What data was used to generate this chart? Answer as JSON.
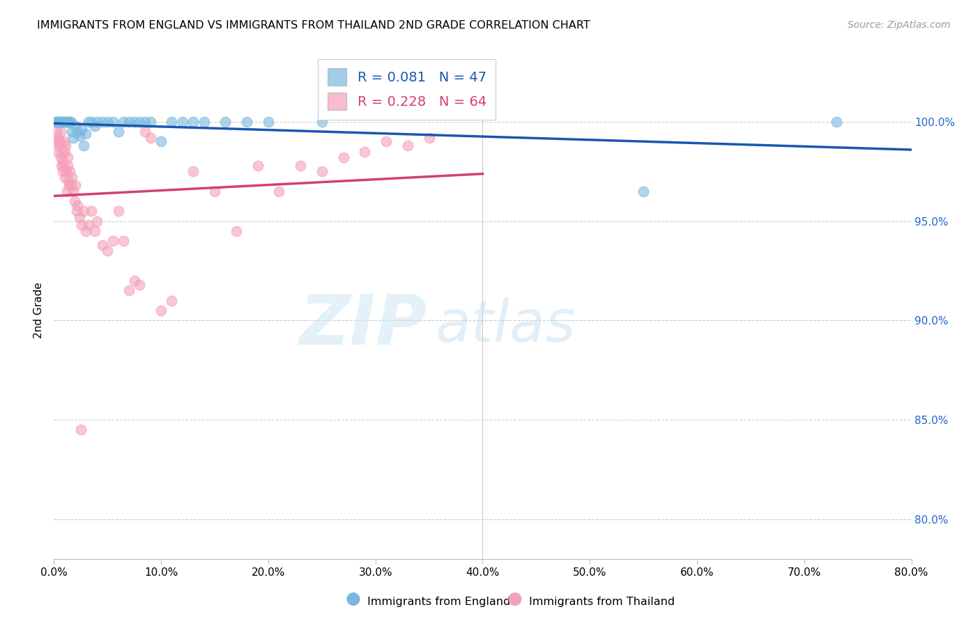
{
  "title": "IMMIGRANTS FROM ENGLAND VS IMMIGRANTS FROM THAILAND 2ND GRADE CORRELATION CHART",
  "source": "Source: ZipAtlas.com",
  "ylabel": "2nd Grade",
  "x_tick_labels": [
    "0.0%",
    "10.0%",
    "20.0%",
    "30.0%",
    "40.0%",
    "50.0%",
    "60.0%",
    "70.0%",
    "80.0%"
  ],
  "x_tick_values": [
    0,
    10,
    20,
    30,
    40,
    50,
    60,
    70,
    80
  ],
  "y_tick_labels": [
    "80.0%",
    "85.0%",
    "90.0%",
    "95.0%",
    "100.0%"
  ],
  "y_tick_values": [
    80,
    85,
    90,
    95,
    100
  ],
  "xlim": [
    0,
    80
  ],
  "ylim": [
    78,
    103
  ],
  "england_R": 0.081,
  "england_N": 47,
  "thailand_R": 0.228,
  "thailand_N": 64,
  "england_color": "#7ab8e0",
  "thailand_color": "#f4a0b8",
  "england_line_color": "#1a56b0",
  "thailand_line_color": "#d44070",
  "legend_england": "Immigrants from England",
  "legend_thailand": "Immigrants from Thailand",
  "background_color": "#ffffff",
  "grid_color": "#cccccc",
  "england_points_x": [
    0.2,
    0.3,
    0.4,
    0.5,
    0.6,
    0.7,
    0.8,
    0.9,
    1.0,
    1.1,
    1.2,
    1.4,
    1.5,
    1.6,
    1.7,
    1.8,
    2.0,
    2.2,
    2.4,
    2.6,
    2.8,
    3.0,
    3.2,
    3.5,
    3.8,
    4.0,
    4.5,
    5.0,
    5.5,
    6.0,
    6.5,
    7.0,
    7.5,
    8.0,
    8.5,
    9.0,
    10.0,
    11.0,
    12.0,
    13.0,
    14.0,
    16.0,
    18.0,
    20.0,
    25.0,
    55.0,
    73.0
  ],
  "england_points_y": [
    100.0,
    100.0,
    100.0,
    100.0,
    100.0,
    100.0,
    100.0,
    100.0,
    100.0,
    100.0,
    100.0,
    100.0,
    100.0,
    100.0,
    99.5,
    99.2,
    99.8,
    99.5,
    99.3,
    99.6,
    98.8,
    99.4,
    100.0,
    100.0,
    99.8,
    100.0,
    100.0,
    100.0,
    100.0,
    99.5,
    100.0,
    100.0,
    100.0,
    100.0,
    100.0,
    100.0,
    99.0,
    100.0,
    100.0,
    100.0,
    100.0,
    100.0,
    100.0,
    100.0,
    100.0,
    96.5,
    100.0
  ],
  "thailand_points_x": [
    0.15,
    0.25,
    0.35,
    0.4,
    0.5,
    0.55,
    0.6,
    0.65,
    0.7,
    0.75,
    0.8,
    0.85,
    0.9,
    0.95,
    1.0,
    1.05,
    1.1,
    1.15,
    1.2,
    1.25,
    1.3,
    1.35,
    1.4,
    1.5,
    1.6,
    1.7,
    1.8,
    1.9,
    2.0,
    2.1,
    2.2,
    2.4,
    2.6,
    2.8,
    3.0,
    3.2,
    3.5,
    3.8,
    4.0,
    4.5,
    5.0,
    5.5,
    6.0,
    6.5,
    7.0,
    7.5,
    8.0,
    8.5,
    9.0,
    10.0,
    11.0,
    13.0,
    15.0,
    17.0,
    19.0,
    21.0,
    23.0,
    25.0,
    27.0,
    29.0,
    31.0,
    33.0,
    35.0,
    2.5
  ],
  "thailand_points_y": [
    99.0,
    99.5,
    98.5,
    99.2,
    98.8,
    99.0,
    98.2,
    99.5,
    97.8,
    98.5,
    98.0,
    97.5,
    97.8,
    99.0,
    98.5,
    97.2,
    98.8,
    97.5,
    96.5,
    97.8,
    98.2,
    97.0,
    96.8,
    97.5,
    96.8,
    97.2,
    96.5,
    96.0,
    96.8,
    95.5,
    95.8,
    95.2,
    94.8,
    95.5,
    94.5,
    94.8,
    95.5,
    94.5,
    95.0,
    93.8,
    93.5,
    94.0,
    95.5,
    94.0,
    91.5,
    92.0,
    91.8,
    99.5,
    99.2,
    90.5,
    91.0,
    97.5,
    96.5,
    94.5,
    97.8,
    96.5,
    97.8,
    97.5,
    98.2,
    98.5,
    99.0,
    98.8,
    99.2,
    84.5
  ]
}
